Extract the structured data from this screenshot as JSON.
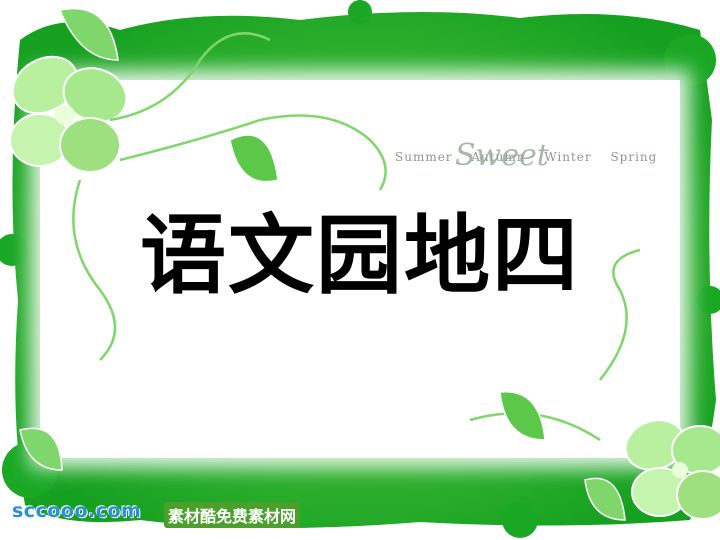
{
  "slide": {
    "title": "语文园地四",
    "season_words": [
      "Summer",
      "Autumn",
      "Winter",
      "Spring"
    ],
    "script_word": "Sweet"
  },
  "watermark": {
    "site": "sccooo.com",
    "site_cn": "素材酷免费素材网"
  },
  "colors": {
    "frame_green": "#22b02a",
    "light_green": "#8fdc7a",
    "panel": "#ffffff",
    "title": "#000000"
  },
  "icons": [
    "clover-flower-icon",
    "leaf-icon",
    "vine-swirl-icon"
  ]
}
